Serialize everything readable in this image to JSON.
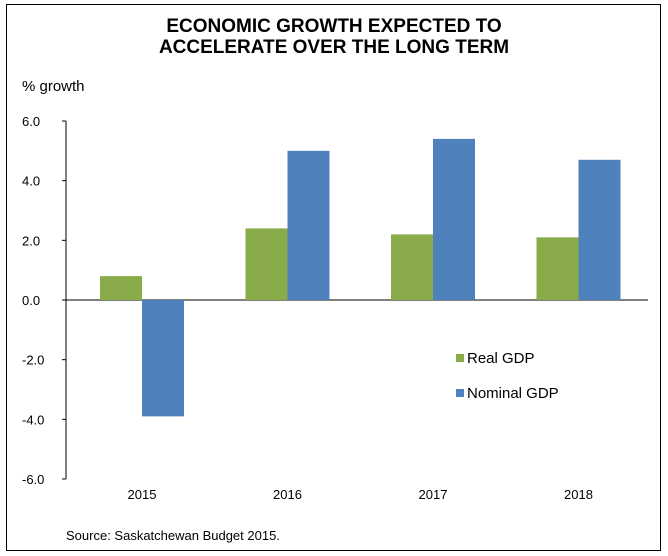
{
  "chart_data": {
    "type": "bar",
    "title_lines": [
      "ECONOMIC GROWTH EXPECTED TO",
      "ACCELERATE OVER THE LONG TERM"
    ],
    "ylabel": "% growth",
    "xlabel": "",
    "categories": [
      "2015",
      "2016",
      "2017",
      "2018"
    ],
    "series": [
      {
        "name": "Real GDP",
        "values": [
          0.8,
          2.4,
          2.2,
          2.1
        ],
        "color": "#8aab4a"
      },
      {
        "name": "Nominal GDP",
        "values": [
          -3.9,
          5.0,
          5.4,
          4.7
        ],
        "color": "#4f81bd"
      }
    ],
    "ylim": [
      -6.0,
      6.0
    ],
    "yticks": [
      "6.0",
      "4.0",
      "2.0",
      "0.0",
      "-2.0",
      "-4.0",
      "-6.0"
    ],
    "ytick_values": [
      6,
      4,
      2,
      0,
      -2,
      -4,
      -6
    ],
    "grid": false,
    "legend_position": "lower-right",
    "source": "Source: Saskatchewan Budget 2015."
  }
}
